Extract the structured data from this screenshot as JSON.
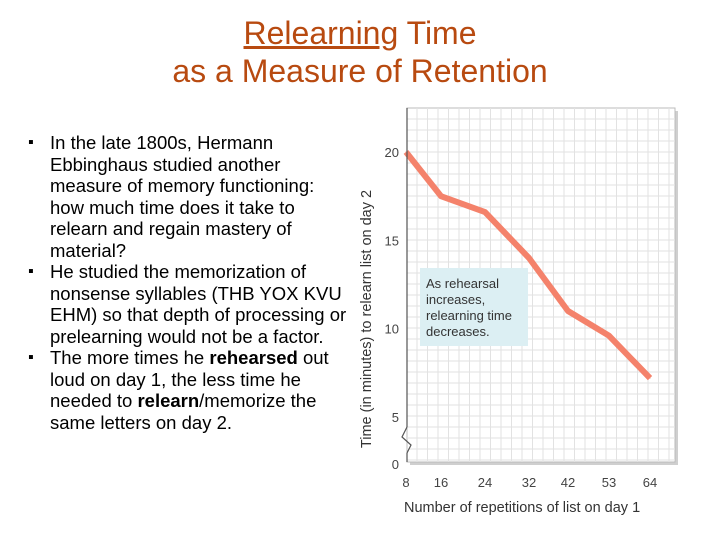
{
  "slide": {
    "title_line1_underlined": "Relearning",
    "title_line1_rest": " Time",
    "title_line2": "as a Measure of Retention",
    "bullets": [
      {
        "text": "In the late 1800s, Hermann Ebbinghaus studied another measure of memory functioning: how much time does it take to relearn and regain mastery of material?"
      },
      {
        "text": "He studied the memorization of nonsense syllables (THB YOX KVU EHM) so that depth of processing or prelearning would not be a factor."
      },
      {
        "pre": "The more times he ",
        "bold1": "rehearsed",
        "mid": " out loud on day 1, the less time he needed to ",
        "bold2": "relearn",
        "post": "/memorize the same letters on day 2."
      }
    ]
  },
  "chart_data": {
    "type": "line",
    "x": [
      8,
      16,
      24,
      32,
      42,
      53,
      64
    ],
    "y": [
      20,
      17.5,
      16.6,
      14,
      11,
      9.6,
      7.2
    ],
    "xticks": [
      "8",
      "16",
      "24",
      "32",
      "42",
      "53",
      "64"
    ],
    "yticks": [
      "0",
      "5",
      "10",
      "15",
      "20"
    ],
    "xlabel": "Number of repetitions of list on day 1",
    "ylabel": "Time (in minutes) to relearn list on day 2",
    "annotation": "As rehearsal increases, relearning time decreases.",
    "ylim": [
      0,
      20
    ],
    "grid": true,
    "line_color": "#f4826b",
    "annotation_bg": "#dceff3"
  }
}
